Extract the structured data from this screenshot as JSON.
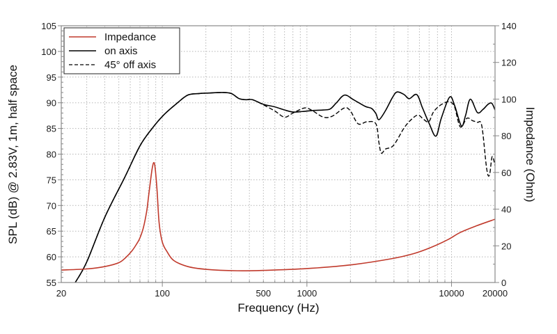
{
  "chart_data": {
    "type": "line",
    "xscale": "log",
    "xlabel": "Frequency (Hz)",
    "ylabel_left": "SPL (dB) @ 2.83V, 1m, half space",
    "ylabel_right": "Impedance (Ohm)",
    "xlim": [
      20,
      20000
    ],
    "ylim_left": [
      55,
      105
    ],
    "ylim_right": [
      0,
      140
    ],
    "x_ticks": [
      {
        "value": 20,
        "label": "20"
      },
      {
        "value": 100,
        "label": "100"
      },
      {
        "value": 500,
        "label": "500"
      },
      {
        "value": 1000,
        "label": "1000"
      },
      {
        "value": 10000,
        "label": "10000"
      },
      {
        "value": 20000,
        "label": "20000"
      }
    ],
    "y_left_ticks": [
      "55",
      "60",
      "65",
      "70",
      "75",
      "80",
      "85",
      "90",
      "95",
      "100",
      "105"
    ],
    "y_right_ticks": [
      "0",
      "20",
      "40",
      "60",
      "80",
      "100",
      "120",
      "140"
    ],
    "grid": true,
    "legend_position": "top-left",
    "series": [
      {
        "name": "Impedance",
        "axis": "right",
        "color": "#c0392b",
        "style": "solid",
        "x": [
          20,
          30,
          40,
          50,
          56,
          62,
          67,
          70,
          74,
          78,
          80,
          83,
          85,
          87,
          89,
          92,
          95,
          100,
          108,
          120,
          150,
          200,
          330,
          500,
          1000,
          2000,
          3800,
          5500,
          7300,
          9500,
          11500,
          15000,
          20000
        ],
        "y": [
          6.8,
          7.4,
          8.7,
          10.8,
          13.7,
          17.5,
          21.5,
          24.3,
          30,
          39,
          45.9,
          56,
          62,
          65.3,
          63,
          50,
          32.6,
          22,
          16.7,
          12,
          8.7,
          7.2,
          6.4,
          6.6,
          7.6,
          9.6,
          12.9,
          15.8,
          19.3,
          23.5,
          27.3,
          31,
          34.5
        ]
      },
      {
        "name": "on axis",
        "axis": "left",
        "color": "#000000",
        "style": "solid",
        "x": [
          25,
          30,
          40,
          55,
          70,
          85,
          102,
          125,
          150,
          180,
          210,
          260,
          300,
          340,
          380,
          420,
          500,
          600,
          700,
          800,
          930,
          1100,
          1300,
          1450,
          1600,
          1820,
          2100,
          2530,
          2800,
          3000,
          3150,
          3500,
          3900,
          4200,
          4700,
          5100,
          5750,
          6300,
          7000,
          7800,
          8500,
          9700,
          10500,
          11700,
          12500,
          13500,
          15100,
          16500,
          17900,
          19000,
          20000
        ],
        "y": [
          55,
          59,
          67.7,
          75.5,
          81.6,
          85,
          87.6,
          89.8,
          91.5,
          91.8,
          91.9,
          92.0,
          91.8,
          90.8,
          90.6,
          90.6,
          89.7,
          89.2,
          88.6,
          88.2,
          88.3,
          88.5,
          88.6,
          88.8,
          90.0,
          91.5,
          90.6,
          89.3,
          88.9,
          87.9,
          86.7,
          88.5,
          91.0,
          92.1,
          91.6,
          90.8,
          91.6,
          89.0,
          86.0,
          83.5,
          87.0,
          91.1,
          89.5,
          85.5,
          87.5,
          90.7,
          88.1,
          88.7,
          89.7,
          89.9,
          88.6
        ]
      },
      {
        "name": "45° off axis",
        "axis": "left",
        "color": "#000000",
        "style": "dashed",
        "x": [
          25,
          30,
          40,
          55,
          70,
          85,
          102,
          125,
          150,
          180,
          210,
          260,
          300,
          340,
          380,
          420,
          500,
          600,
          700,
          800,
          970,
          1100,
          1300,
          1500,
          1820,
          2000,
          2260,
          2600,
          3000,
          3150,
          3270,
          3500,
          3970,
          4700,
          5300,
          5870,
          6400,
          6960,
          7500,
          8250,
          9000,
          9700,
          10500,
          11500,
          12800,
          14000,
          15100,
          16200,
          17500,
          18300,
          19100,
          20000
        ],
        "y": [
          55,
          59,
          67.7,
          75.5,
          81.6,
          85,
          87.6,
          89.8,
          91.5,
          91.8,
          91.9,
          92.0,
          91.8,
          90.8,
          90.6,
          90.6,
          89.6,
          88.4,
          87.2,
          88.0,
          89.0,
          88.4,
          87.2,
          87.4,
          89.0,
          88.4,
          85.9,
          86.3,
          85.9,
          82.2,
          80.2,
          81.0,
          81.7,
          85.1,
          86.8,
          87.6,
          86.8,
          86.3,
          88.2,
          89.4,
          90.0,
          90.2,
          89.2,
          85.3,
          87.0,
          86.5,
          86.2,
          85.5,
          77.2,
          75.9,
          79.5,
          77.8
        ]
      }
    ]
  }
}
